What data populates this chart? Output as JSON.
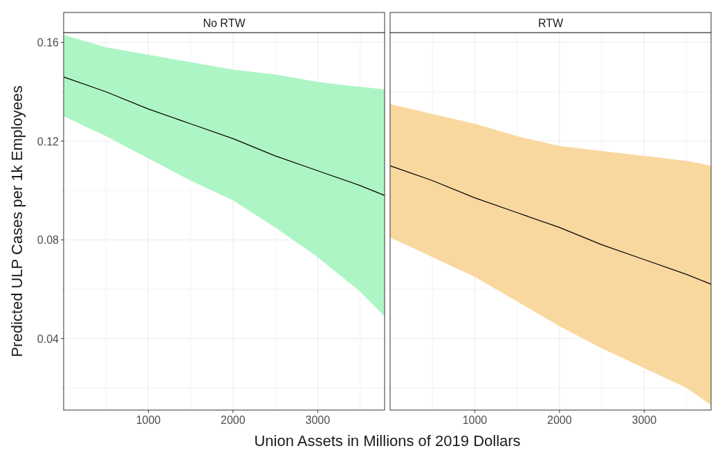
{
  "chart_data": [
    {
      "type": "line",
      "title": "No RTW",
      "ylabel": "Predicted ULP Cases per 1k Employees",
      "xlabel": "Union Assets in Millions of 2019 Dollars",
      "x": [
        0,
        500,
        1000,
        1500,
        2000,
        2500,
        3000,
        3500,
        3790
      ],
      "xlim": [
        0,
        3790
      ],
      "xticks": [
        {
          "value": 500,
          "label": null
        },
        1000,
        {
          "value": 1500,
          "label": null
        },
        2000,
        {
          "value": 2500,
          "label": null
        },
        3000,
        {
          "value": 3500,
          "label": null
        }
      ],
      "ylim": [
        0.011,
        0.164
      ],
      "yticks": [
        {
          "value": 0.02,
          "label": null
        },
        0.04,
        {
          "value": 0.06,
          "label": null
        },
        0.08,
        {
          "value": 0.1,
          "label": null
        },
        0.12,
        {
          "value": 0.14,
          "label": null
        },
        0.16
      ],
      "grid": true,
      "marker": "none",
      "colors": [
        "#aef5c6"
      ],
      "series": [
        {
          "color": "#000000",
          "values": [
            0.146,
            0.14,
            0.133,
            0.127,
            0.121,
            0.114,
            0.108,
            0.102,
            0.098
          ],
          "upper": [
            0.163,
            0.158,
            0.155,
            0.152,
            0.149,
            0.147,
            0.144,
            0.142,
            0.141
          ],
          "lower": [
            0.13,
            0.122,
            0.113,
            0.104,
            0.096,
            0.085,
            0.073,
            0.059,
            0.049
          ]
        }
      ]
    },
    {
      "type": "line",
      "title": "RTW",
      "x": [
        0,
        500,
        1000,
        1500,
        2000,
        2500,
        3000,
        3500,
        3790
      ],
      "xlim": [
        0,
        3790
      ],
      "xticks": [
        {
          "value": 500,
          "label": null
        },
        1000,
        {
          "value": 1500,
          "label": null
        },
        2000,
        {
          "value": 2500,
          "label": null
        },
        3000,
        {
          "value": 3500,
          "label": null
        }
      ],
      "ylim": [
        0.011,
        0.164
      ],
      "yticks": [
        {
          "value": 0.02,
          "label": null
        },
        0.04,
        {
          "value": 0.06,
          "label": null
        },
        0.08,
        {
          "value": 0.1,
          "label": null
        },
        0.12,
        {
          "value": 0.14,
          "label": null
        },
        0.16
      ],
      "grid": true,
      "marker": "none",
      "tick_labels": "x",
      "colors": [
        "#f9d8a0"
      ],
      "series": [
        {
          "color": "#000000",
          "values": [
            0.11,
            0.104,
            0.097,
            0.091,
            0.085,
            0.078,
            0.072,
            0.066,
            0.062
          ],
          "upper": [
            0.135,
            0.131,
            0.127,
            0.122,
            0.118,
            0.116,
            0.114,
            0.112,
            0.11
          ],
          "lower": [
            0.081,
            0.073,
            0.065,
            0.055,
            0.045,
            0.036,
            0.028,
            0.02,
            0.013
          ]
        }
      ]
    }
  ]
}
